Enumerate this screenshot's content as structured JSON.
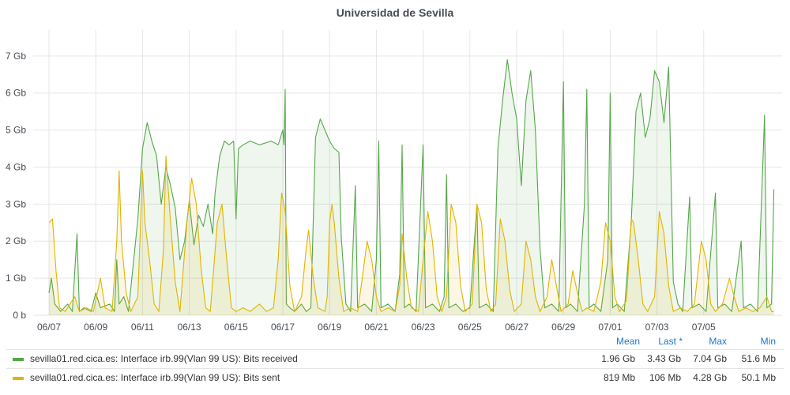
{
  "title": "Universidad de Sevilla",
  "legend_headers": {
    "mean": "Mean",
    "last": "Last *",
    "max": "Max",
    "min": "Min"
  },
  "legend": [
    {
      "name": "sevilla01.red.cica.es: Interface irb.99(Vlan 99 US): Bits received",
      "color": "#56a64b",
      "mean": "1.96 Gb",
      "last": "3.43 Gb",
      "max": "7.04 Gb",
      "min": "51.6 Mb"
    },
    {
      "name": "sevilla01.red.cica.es: Interface irb.99(Vlan 99 US): Bits sent",
      "color": "#e0b400",
      "mean": "819 Mb",
      "last": "106 Mb",
      "max": "4.28 Gb",
      "min": "50.1 Mb"
    }
  ],
  "chart_data": {
    "type": "area",
    "title": "Universidad de Sevilla",
    "x_ticks": [
      "06/07",
      "06/09",
      "06/11",
      "06/13",
      "06/15",
      "06/17",
      "06/19",
      "06/21",
      "06/23",
      "06/25",
      "06/27",
      "06/29",
      "07/01",
      "07/03",
      "07/05"
    ],
    "y_ticks": [
      "0 b",
      "1 Gb",
      "2 Gb",
      "3 Gb",
      "4 Gb",
      "5 Gb",
      "6 Gb",
      "7 Gb"
    ],
    "ylim": [
      0,
      7.7
    ],
    "grid": true,
    "legend_position": "bottom",
    "series": [
      {
        "name": "sevilla01.red.cica.es: Interface irb.99(Vlan 99 US): Bits received",
        "color": "#56a64b",
        "points": [
          [
            0,
            0.6
          ],
          [
            0.1,
            1.0
          ],
          [
            0.25,
            0.3
          ],
          [
            0.5,
            0.1
          ],
          [
            0.8,
            0.3
          ],
          [
            1.0,
            0.1
          ],
          [
            1.2,
            2.2
          ],
          [
            1.3,
            0.1
          ],
          [
            1.5,
            0.2
          ],
          [
            1.8,
            0.1
          ],
          [
            2.0,
            0.6
          ],
          [
            2.2,
            0.2
          ],
          [
            2.6,
            0.3
          ],
          [
            2.8,
            0.1
          ],
          [
            2.9,
            1.5
          ],
          [
            3.0,
            0.3
          ],
          [
            3.2,
            0.5
          ],
          [
            3.4,
            0.1
          ],
          [
            3.8,
            2.6
          ],
          [
            4.0,
            4.5
          ],
          [
            4.2,
            5.2
          ],
          [
            4.4,
            4.7
          ],
          [
            4.6,
            4.3
          ],
          [
            4.8,
            3.0
          ],
          [
            5.0,
            4.0
          ],
          [
            5.2,
            3.5
          ],
          [
            5.4,
            2.9
          ],
          [
            5.6,
            1.5
          ],
          [
            5.8,
            2.0
          ],
          [
            6.0,
            3.1
          ],
          [
            6.2,
            1.9
          ],
          [
            6.4,
            2.7
          ],
          [
            6.6,
            2.4
          ],
          [
            6.8,
            3.0
          ],
          [
            7.0,
            2.2
          ],
          [
            7.1,
            3.3
          ],
          [
            7.3,
            4.3
          ],
          [
            7.5,
            4.7
          ],
          [
            7.7,
            4.6
          ],
          [
            7.9,
            4.7
          ],
          [
            8.0,
            2.6
          ],
          [
            8.1,
            4.5
          ],
          [
            8.3,
            4.6
          ],
          [
            8.6,
            4.7
          ],
          [
            9.0,
            4.6
          ],
          [
            9.5,
            4.7
          ],
          [
            9.8,
            4.6
          ],
          [
            10.0,
            5.0
          ],
          [
            10.05,
            4.6
          ],
          [
            10.1,
            6.1
          ],
          [
            10.15,
            0.3
          ],
          [
            10.3,
            0.2
          ],
          [
            10.5,
            0.1
          ],
          [
            10.8,
            0.3
          ],
          [
            11.0,
            0.1
          ],
          [
            11.2,
            0.2
          ],
          [
            11.4,
            4.8
          ],
          [
            11.6,
            5.3
          ],
          [
            11.8,
            5.0
          ],
          [
            12.0,
            4.7
          ],
          [
            12.2,
            4.5
          ],
          [
            12.4,
            4.4
          ],
          [
            12.5,
            2.1
          ],
          [
            12.7,
            0.3
          ],
          [
            12.9,
            0.1
          ],
          [
            13.1,
            3.5
          ],
          [
            13.2,
            0.2
          ],
          [
            13.5,
            0.3
          ],
          [
            13.8,
            0.1
          ],
          [
            14.0,
            1.5
          ],
          [
            14.1,
            4.7
          ],
          [
            14.2,
            0.2
          ],
          [
            14.5,
            0.3
          ],
          [
            14.8,
            0.1
          ],
          [
            15.0,
            1.1
          ],
          [
            15.1,
            4.6
          ],
          [
            15.2,
            0.2
          ],
          [
            15.4,
            0.3
          ],
          [
            15.7,
            0.1
          ],
          [
            16.0,
            4.6
          ],
          [
            16.1,
            0.2
          ],
          [
            16.4,
            0.3
          ],
          [
            16.7,
            0.1
          ],
          [
            16.9,
            0.5
          ],
          [
            17.0,
            3.8
          ],
          [
            17.1,
            0.2
          ],
          [
            17.4,
            0.3
          ],
          [
            17.7,
            0.1
          ],
          [
            18.0,
            0.2
          ],
          [
            18.3,
            3.0
          ],
          [
            18.4,
            0.2
          ],
          [
            18.7,
            0.3
          ],
          [
            19.0,
            0.1
          ],
          [
            19.2,
            4.5
          ],
          [
            19.4,
            5.8
          ],
          [
            19.6,
            6.9
          ],
          [
            19.8,
            6.0
          ],
          [
            20.0,
            5.3
          ],
          [
            20.2,
            3.5
          ],
          [
            20.4,
            5.8
          ],
          [
            20.6,
            6.6
          ],
          [
            20.8,
            5.0
          ],
          [
            21.0,
            1.8
          ],
          [
            21.2,
            0.2
          ],
          [
            21.5,
            0.3
          ],
          [
            21.8,
            0.1
          ],
          [
            22.0,
            6.3
          ],
          [
            22.1,
            0.2
          ],
          [
            22.3,
            0.3
          ],
          [
            22.6,
            0.1
          ],
          [
            22.9,
            3.0
          ],
          [
            23.0,
            6.1
          ],
          [
            23.1,
            0.2
          ],
          [
            23.3,
            0.3
          ],
          [
            23.6,
            0.1
          ],
          [
            23.9,
            1.5
          ],
          [
            24.0,
            6.0
          ],
          [
            24.1,
            0.2
          ],
          [
            24.3,
            0.3
          ],
          [
            24.6,
            0.1
          ],
          [
            24.9,
            2.5
          ],
          [
            25.1,
            5.5
          ],
          [
            25.3,
            6.0
          ],
          [
            25.5,
            4.8
          ],
          [
            25.7,
            5.3
          ],
          [
            25.9,
            6.6
          ],
          [
            26.1,
            6.3
          ],
          [
            26.3,
            5.2
          ],
          [
            26.5,
            6.7
          ],
          [
            26.7,
            0.9
          ],
          [
            26.9,
            0.3
          ],
          [
            27.1,
            0.1
          ],
          [
            27.4,
            3.2
          ],
          [
            27.5,
            0.2
          ],
          [
            27.8,
            0.3
          ],
          [
            28.1,
            0.1
          ],
          [
            28.5,
            3.3
          ],
          [
            28.6,
            0.2
          ],
          [
            28.9,
            0.3
          ],
          [
            29.2,
            0.1
          ],
          [
            29.6,
            2.0
          ],
          [
            29.7,
            0.2
          ],
          [
            30.0,
            0.3
          ],
          [
            30.3,
            0.1
          ],
          [
            30.6,
            5.4
          ],
          [
            30.7,
            0.2
          ],
          [
            30.9,
            0.3
          ],
          [
            31.0,
            3.4
          ]
        ]
      },
      {
        "name": "sevilla01.red.cica.es: Interface irb.99(Vlan 99 US): Bits sent",
        "color": "#e0b400",
        "points": [
          [
            0,
            2.5
          ],
          [
            0.15,
            2.6
          ],
          [
            0.3,
            1.2
          ],
          [
            0.45,
            0.2
          ],
          [
            0.7,
            0.1
          ],
          [
            0.9,
            0.3
          ],
          [
            1.1,
            0.5
          ],
          [
            1.3,
            0.1
          ],
          [
            1.6,
            0.2
          ],
          [
            1.9,
            0.1
          ],
          [
            2.2,
            1.0
          ],
          [
            2.4,
            0.2
          ],
          [
            2.7,
            0.1
          ],
          [
            2.9,
            2.0
          ],
          [
            3.0,
            3.9
          ],
          [
            3.1,
            2.0
          ],
          [
            3.3,
            0.6
          ],
          [
            3.5,
            0.1
          ],
          [
            3.8,
            0.5
          ],
          [
            4.0,
            3.9
          ],
          [
            4.1,
            2.5
          ],
          [
            4.3,
            1.5
          ],
          [
            4.5,
            0.3
          ],
          [
            4.7,
            0.1
          ],
          [
            4.9,
            1.8
          ],
          [
            5.0,
            4.3
          ],
          [
            5.2,
            2.5
          ],
          [
            5.4,
            0.9
          ],
          [
            5.6,
            0.1
          ],
          [
            5.9,
            2.5
          ],
          [
            6.1,
            3.7
          ],
          [
            6.3,
            3.0
          ],
          [
            6.5,
            1.3
          ],
          [
            6.7,
            0.2
          ],
          [
            6.9,
            0.1
          ],
          [
            7.2,
            2.5
          ],
          [
            7.4,
            3.0
          ],
          [
            7.6,
            1.5
          ],
          [
            7.8,
            0.2
          ],
          [
            8.0,
            0.1
          ],
          [
            8.3,
            0.2
          ],
          [
            8.6,
            0.1
          ],
          [
            9.0,
            0.3
          ],
          [
            9.3,
            0.1
          ],
          [
            9.6,
            0.2
          ],
          [
            9.8,
            1.5
          ],
          [
            9.95,
            3.3
          ],
          [
            10.1,
            2.8
          ],
          [
            10.3,
            0.8
          ],
          [
            10.5,
            0.1
          ],
          [
            10.8,
            0.5
          ],
          [
            11.0,
            1.8
          ],
          [
            11.1,
            2.3
          ],
          [
            11.3,
            1.0
          ],
          [
            11.5,
            0.2
          ],
          [
            11.8,
            0.1
          ],
          [
            11.9,
            0.5
          ],
          [
            12.0,
            2.5
          ],
          [
            12.1,
            3.0
          ],
          [
            12.2,
            2.5
          ],
          [
            12.4,
            1.0
          ],
          [
            12.6,
            0.1
          ],
          [
            12.9,
            0.2
          ],
          [
            13.2,
            0.1
          ],
          [
            13.4,
            1.0
          ],
          [
            13.6,
            2.0
          ],
          [
            13.8,
            1.5
          ],
          [
            14.0,
            0.5
          ],
          [
            14.2,
            0.1
          ],
          [
            14.5,
            0.2
          ],
          [
            14.8,
            0.1
          ],
          [
            15.0,
            0.8
          ],
          [
            15.1,
            2.2
          ],
          [
            15.3,
            1.0
          ],
          [
            15.5,
            0.2
          ],
          [
            15.8,
            0.1
          ],
          [
            16.0,
            1.5
          ],
          [
            16.2,
            2.8
          ],
          [
            16.4,
            2.0
          ],
          [
            16.6,
            0.5
          ],
          [
            16.8,
            0.1
          ],
          [
            17.0,
            0.5
          ],
          [
            17.2,
            3.0
          ],
          [
            17.4,
            2.5
          ],
          [
            17.6,
            0.8
          ],
          [
            17.8,
            0.1
          ],
          [
            18.1,
            0.3
          ],
          [
            18.3,
            3.0
          ],
          [
            18.5,
            2.5
          ],
          [
            18.7,
            0.7
          ],
          [
            18.9,
            0.1
          ],
          [
            19.1,
            0.3
          ],
          [
            19.3,
            2.6
          ],
          [
            19.5,
            2.0
          ],
          [
            19.7,
            0.7
          ],
          [
            19.9,
            0.1
          ],
          [
            20.2,
            0.3
          ],
          [
            20.4,
            2.0
          ],
          [
            20.6,
            1.5
          ],
          [
            20.8,
            0.5
          ],
          [
            21.0,
            0.1
          ],
          [
            21.3,
            0.5
          ],
          [
            21.5,
            1.5
          ],
          [
            21.7,
            0.8
          ],
          [
            21.9,
            0.1
          ],
          [
            22.2,
            0.3
          ],
          [
            22.4,
            1.2
          ],
          [
            22.6,
            0.6
          ],
          [
            22.8,
            0.1
          ],
          [
            23.0,
            0.2
          ],
          [
            23.3,
            0.1
          ],
          [
            23.6,
            0.9
          ],
          [
            23.8,
            2.5
          ],
          [
            24.0,
            2.0
          ],
          [
            24.2,
            0.5
          ],
          [
            24.4,
            0.1
          ],
          [
            24.7,
            0.4
          ],
          [
            24.9,
            2.6
          ],
          [
            25.0,
            2.5
          ],
          [
            25.2,
            1.5
          ],
          [
            25.4,
            0.3
          ],
          [
            25.6,
            0.1
          ],
          [
            25.9,
            0.5
          ],
          [
            26.1,
            2.8
          ],
          [
            26.3,
            2.2
          ],
          [
            26.5,
            0.8
          ],
          [
            26.7,
            0.1
          ],
          [
            27.0,
            0.2
          ],
          [
            27.3,
            0.1
          ],
          [
            27.6,
            0.3
          ],
          [
            27.9,
            2.0
          ],
          [
            28.1,
            1.5
          ],
          [
            28.3,
            0.3
          ],
          [
            28.5,
            0.1
          ],
          [
            28.8,
            0.3
          ],
          [
            29.1,
            1.0
          ],
          [
            29.3,
            0.5
          ],
          [
            29.5,
            0.1
          ],
          [
            29.8,
            0.2
          ],
          [
            30.1,
            0.1
          ],
          [
            30.4,
            0.2
          ],
          [
            30.7,
            0.5
          ],
          [
            30.9,
            0.1
          ],
          [
            31.0,
            0.1
          ]
        ]
      }
    ]
  }
}
